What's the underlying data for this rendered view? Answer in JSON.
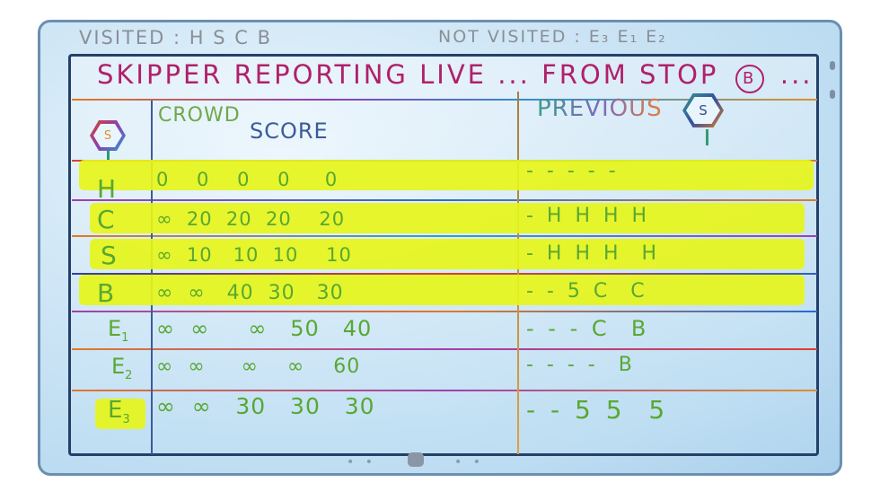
{
  "status": {
    "visited": "VISITED : H S C B",
    "not_visited": "NOT VISITED : E₃ E₁ E₂"
  },
  "headline": {
    "text": "SKIPPER REPORTING LIVE ... FROM STOP",
    "stop": "B",
    "suffix": "..."
  },
  "table": {
    "source_icon_label": "S",
    "header_crowd": "CROWD",
    "header_score": "SCORE",
    "header_previous": "PREVIOUS",
    "previous_icon_label": "S",
    "rows": [
      {
        "node": "H",
        "sub": "",
        "scores": "0    0    0    0     0",
        "previous": "- - - - -",
        "highlighted": true
      },
      {
        "node": "C",
        "sub": "",
        "scores": "∞  20  20  20    20",
        "previous": "- H H H H",
        "highlighted": true
      },
      {
        "node": "S",
        "sub": "",
        "scores": "∞  10   10  10    10",
        "previous": "- H H H  H",
        "highlighted": true
      },
      {
        "node": "B",
        "sub": "",
        "scores": "∞  ∞   40  30   30",
        "previous": "- - 5 C  C",
        "highlighted": true
      },
      {
        "node": "E",
        "sub": "1",
        "scores": "∞  ∞     ∞   50   40",
        "previous": "- - - C  B",
        "highlighted": false
      },
      {
        "node": "E",
        "sub": "2",
        "scores": "∞  ∞     ∞    ∞    60",
        "previous": "- - - -  B",
        "highlighted": false
      },
      {
        "node": "E",
        "sub": "3",
        "scores": "∞  ∞   30   30   30",
        "previous": "- - 5 5  5",
        "highlighted": true
      }
    ]
  },
  "colors": {
    "highlight": "#e6f51a",
    "ink_green": "#58a832",
    "headline": "#b0206a",
    "frame": "#24406a"
  }
}
